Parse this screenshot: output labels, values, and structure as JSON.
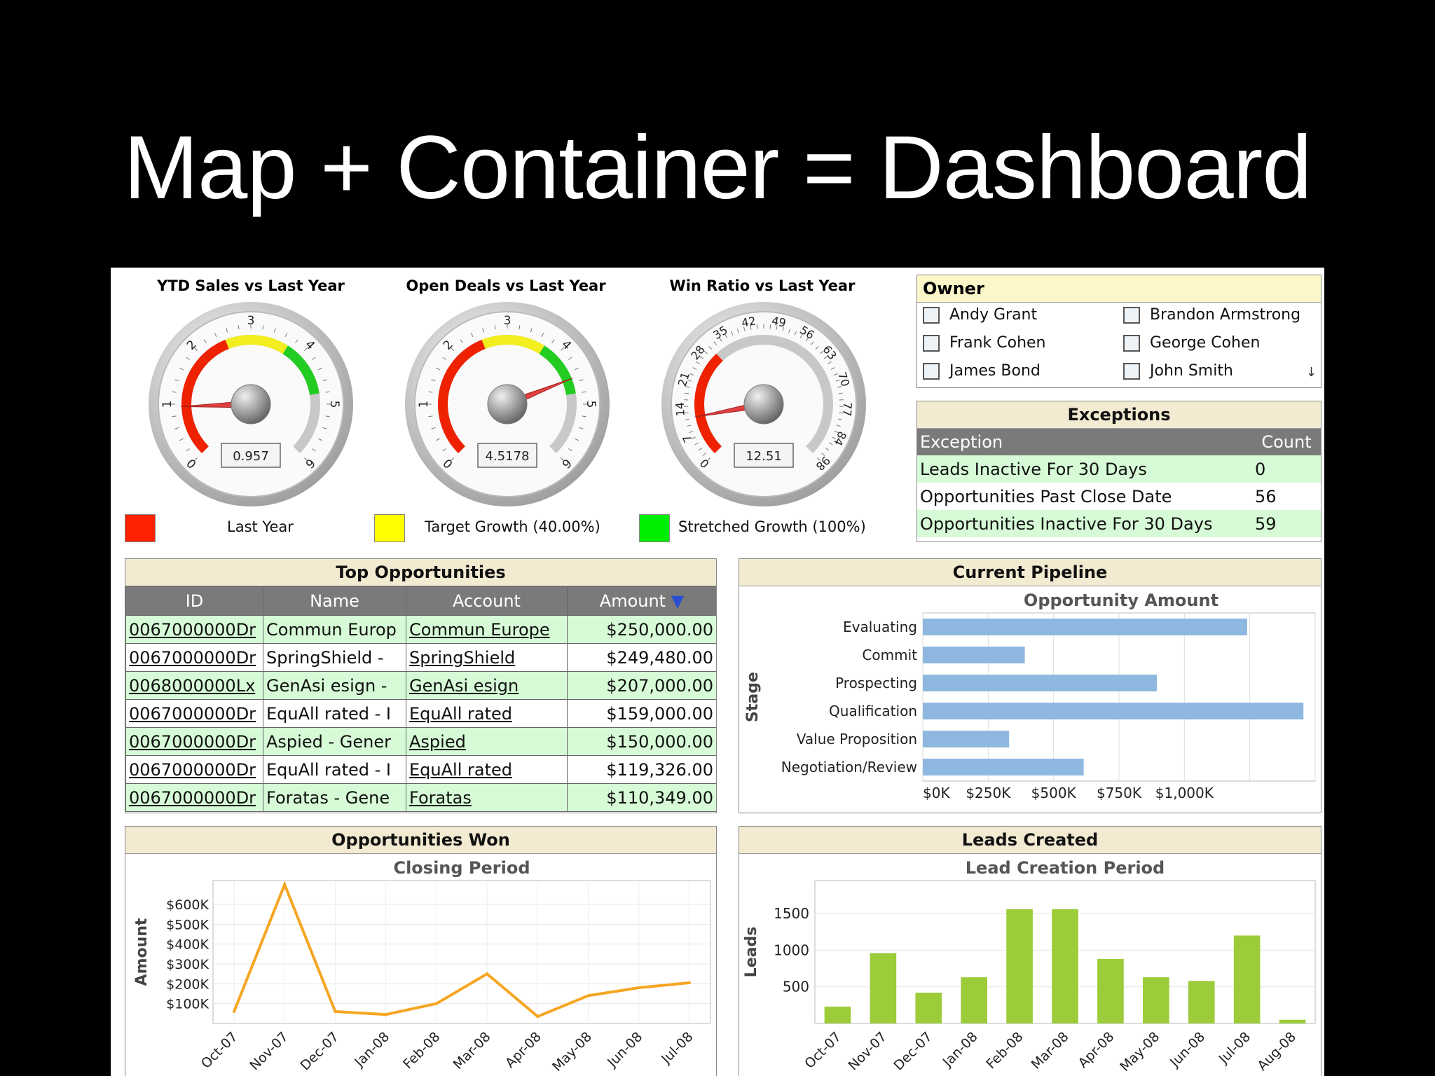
{
  "slide_title": "Map + Container = Dashboard",
  "gauges": [
    {
      "title": "YTD Sales vs Last Year",
      "min": 0,
      "max": 6,
      "ticks": [
        "0",
        "1",
        "2",
        "3",
        "4",
        "5",
        "6"
      ],
      "value": 0.957,
      "readout": "0.957"
    },
    {
      "title": "Open Deals vs Last Year",
      "min": 0,
      "max": 6,
      "ticks": [
        "0",
        "1",
        "2",
        "3",
        "4",
        "5",
        "6"
      ],
      "value": 4.5178,
      "readout": "4.5178"
    },
    {
      "title": "Win Ratio vs Last Year",
      "min": 0,
      "max": 98,
      "ticks": [
        "0",
        "7",
        "14",
        "21",
        "28",
        "35",
        "42",
        "49",
        "56",
        "63",
        "70",
        "77",
        "84",
        "98"
      ],
      "value": 12.51,
      "readout": "12.51"
    }
  ],
  "legend": [
    {
      "label": "Last Year",
      "color": "#ff2200"
    },
    {
      "label": "Target Growth (40.00%)",
      "color": "#ffff00"
    },
    {
      "label": "Stretched Growth (100%)",
      "color": "#00ee00"
    }
  ],
  "owner": {
    "title": "Owner",
    "items": [
      "Andy Grant",
      "Brandon Armstrong",
      "Frank Cohen",
      "George Cohen",
      "James Bond",
      "John Smith"
    ]
  },
  "exceptions": {
    "title": "Exceptions",
    "columns": [
      "Exception",
      "Count"
    ],
    "rows": [
      {
        "name": "Leads Inactive For 30 Days",
        "count": "0"
      },
      {
        "name": "Opportunities Past Close Date",
        "count": "56"
      },
      {
        "name": "Opportunities Inactive For 30 Days",
        "count": "59"
      }
    ]
  },
  "top_opportunities": {
    "title": "Top Opportunities",
    "columns": [
      "ID",
      "Name",
      "Account",
      "Amount"
    ],
    "rows": [
      {
        "id": "0067000000Dr",
        "name": "Commun Europ",
        "account": "Commun Europe",
        "amount": "$250,000.00"
      },
      {
        "id": "0067000000Dr",
        "name": "SpringShield -",
        "account": "SpringShield",
        "amount": "$249,480.00"
      },
      {
        "id": "0068000000Lx",
        "name": "GenAsi esign -",
        "account": "GenAsi esign",
        "amount": "$207,000.00"
      },
      {
        "id": "0067000000Dr",
        "name": "EquAll rated - I",
        "account": "EquAll rated",
        "amount": "$159,000.00"
      },
      {
        "id": "0067000000Dr",
        "name": "Aspied - Gener",
        "account": "Aspied",
        "amount": "$150,000.00"
      },
      {
        "id": "0067000000Dr",
        "name": "EquAll rated - I",
        "account": "EquAll rated",
        "amount": "$119,326.00"
      },
      {
        "id": "0067000000Dr",
        "name": "Foratas - Gene",
        "account": "Foratas",
        "amount": "$110,349.00"
      }
    ]
  },
  "current_pipeline": {
    "title": "Current Pipeline",
    "chart_title": "Opportunity Amount",
    "ylabel": "Stage",
    "x_ticks": [
      "$0K",
      "$250K",
      "$500K",
      "$750K",
      "$1,000K"
    ]
  },
  "opportunities_won": {
    "title": "Opportunities Won",
    "chart_title": "Closing Period",
    "ylabel": "Amount",
    "y_ticks": [
      "$100K",
      "$200K",
      "$300K",
      "$400K",
      "$500K",
      "$600K"
    ]
  },
  "leads_created": {
    "title": "Leads Created",
    "chart_title": "Lead Creation Period",
    "ylabel": "Leads",
    "y_ticks": [
      "500",
      "1000",
      "1500"
    ]
  },
  "chart_data": [
    {
      "type": "bar",
      "orientation": "horizontal",
      "title": "Opportunity Amount",
      "ylabel": "Stage",
      "categories": [
        "Evaluating",
        "Commit",
        "Prospecting",
        "Qualification",
        "Value Proposition",
        "Negotiation/Review"
      ],
      "values": [
        1240,
        390,
        895,
        1455,
        330,
        615
      ],
      "xlim": [
        0,
        1500
      ],
      "grid": true,
      "color": "#8fb8e0"
    },
    {
      "type": "line",
      "title": "Closing Period",
      "ylabel": "Amount",
      "categories": [
        "Oct-07",
        "Nov-07",
        "Dec-07",
        "Jan-08",
        "Feb-08",
        "Mar-08",
        "Apr-08",
        "May-08",
        "Jun-08",
        "Jul-08"
      ],
      "values": [
        60,
        700,
        60,
        45,
        100,
        250,
        35,
        140,
        180,
        205
      ],
      "ylim": [
        0,
        720
      ],
      "units": "$K",
      "grid": true,
      "color": "#f5a623"
    },
    {
      "type": "bar",
      "title": "Lead Creation Period",
      "ylabel": "Leads",
      "categories": [
        "Oct-07",
        "Nov-07",
        "Dec-07",
        "Jan-08",
        "Feb-08",
        "Mar-08",
        "Apr-08",
        "May-08",
        "Jun-08",
        "Jul-08",
        "Aug-08"
      ],
      "values": [
        230,
        960,
        420,
        630,
        1560,
        1560,
        880,
        630,
        580,
        1200,
        50
      ],
      "ylim": [
        0,
        1950
      ],
      "grid": true,
      "color": "#9ccc3a"
    }
  ]
}
